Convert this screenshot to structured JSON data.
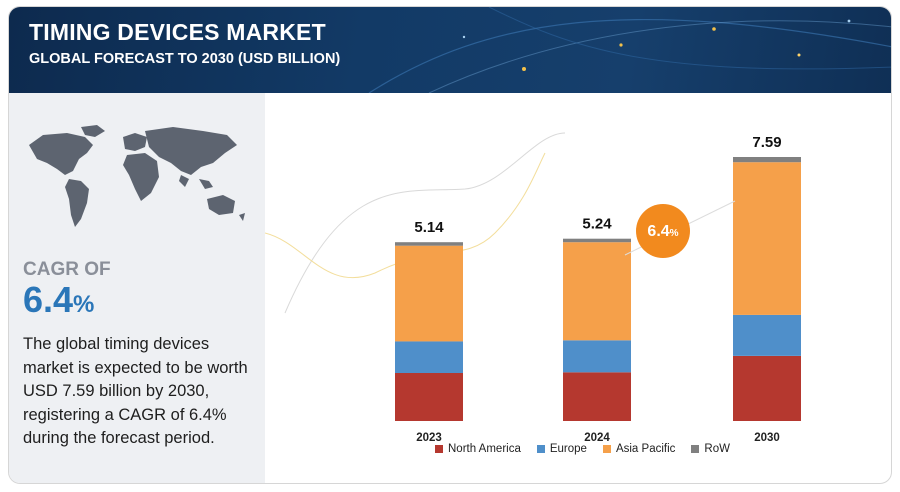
{
  "header": {
    "title": "TIMING DEVICES MARKET",
    "subtitle": "GLOBAL FORECAST TO 2030 (USD BILLION)"
  },
  "left_panel": {
    "cagr_label": "CAGR OF",
    "cagr_number": "6.4",
    "cagr_unit": "%",
    "description": "The global timing devices market is expected to be worth USD 7.59 billion by 2030, registering a CAGR of 6.4% during the forecast period."
  },
  "chart_data": {
    "type": "bar",
    "stacked": true,
    "categories": [
      "2023",
      "2024",
      "2030"
    ],
    "totals": [
      "5.14",
      "5.24",
      "7.59"
    ],
    "series": [
      {
        "name": "North America",
        "color": "#b5382f",
        "values": [
          1.38,
          1.4,
          1.87
        ]
      },
      {
        "name": "Europe",
        "color": "#4f8fca",
        "values": [
          0.91,
          0.92,
          1.18
        ]
      },
      {
        "name": "Asia Pacific",
        "color": "#f5a04a",
        "values": [
          2.75,
          2.82,
          4.39
        ]
      },
      {
        "name": "RoW",
        "color": "#808080",
        "values": [
          0.1,
          0.1,
          0.15
        ]
      }
    ],
    "cagr_badge": {
      "number": "6.4",
      "unit": "%",
      "color": "#f28a1e"
    },
    "legend_position": "bottom",
    "grid": false
  }
}
